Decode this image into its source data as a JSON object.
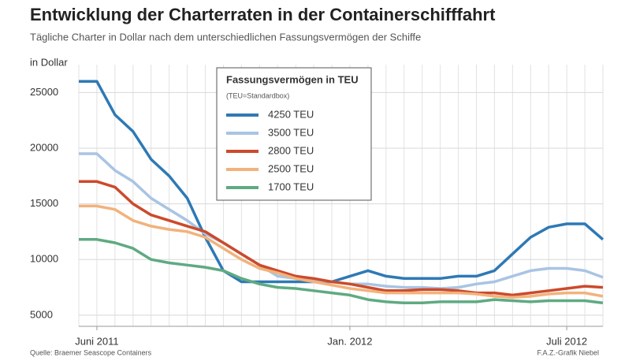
{
  "chart_data": {
    "type": "line",
    "title": "Entwicklung der Charterraten in der Containerschifffahrt",
    "subtitle": "Tägliche Charter in Dollar nach dem unterschiedlichen Fassungsvermögen der Schiffe",
    "y_label": "in Dollar",
    "legend_title": "Fassungsvermögen in TEU",
    "legend_subtitle": "(TEU=Standardbox)",
    "source": "Quelle: Braemer Seascope Containers",
    "credit": "F.A.Z.-Grafik Niebel",
    "categories": [
      null,
      "Juni 2011",
      null,
      null,
      null,
      null,
      null,
      null,
      null,
      null,
      null,
      null,
      null,
      null,
      null,
      "Jan. 2012",
      null,
      null,
      null,
      null,
      null,
      null,
      null,
      null,
      null,
      null,
      null,
      "Juli 2012",
      null,
      null
    ],
    "series": [
      {
        "name": "4250 TEU",
        "color": "#2e79b5",
        "values": [
          26000,
          26000,
          23000,
          21500,
          19000,
          17500,
          15500,
          12000,
          9000,
          8000,
          8000,
          8000,
          8000,
          8000,
          8000,
          8500,
          9000,
          8500,
          8300,
          8300,
          8300,
          8500,
          8500,
          9000,
          10500,
          12000,
          12900,
          13200,
          13200,
          11800
        ]
      },
      {
        "name": "3500 TEU",
        "color": "#a9c4e4",
        "values": [
          19500,
          19500,
          18000,
          17000,
          15500,
          14500,
          13500,
          12300,
          11500,
          10500,
          9500,
          8500,
          8300,
          8200,
          8000,
          7800,
          7800,
          7600,
          7500,
          7500,
          7400,
          7500,
          7800,
          8000,
          8500,
          9000,
          9200,
          9200,
          9000,
          8400
        ]
      },
      {
        "name": "2800 TEU",
        "color": "#cc4a2b",
        "values": [
          17000,
          17000,
          16500,
          15000,
          14000,
          13500,
          13000,
          12500,
          11500,
          10500,
          9500,
          9000,
          8500,
          8300,
          8000,
          7800,
          7500,
          7200,
          7200,
          7300,
          7300,
          7200,
          7000,
          7000,
          6800,
          7000,
          7200,
          7400,
          7600,
          7500
        ]
      },
      {
        "name": "2500 TEU",
        "color": "#f2b27c",
        "values": [
          14800,
          14800,
          14500,
          13500,
          13000,
          12700,
          12500,
          12000,
          11000,
          10000,
          9200,
          8800,
          8300,
          8000,
          7700,
          7400,
          7200,
          7000,
          7000,
          7000,
          7000,
          7000,
          6900,
          6700,
          6600,
          6700,
          6900,
          7000,
          7000,
          6700
        ]
      },
      {
        "name": "1700 TEU",
        "color": "#5faa82",
        "values": [
          11800,
          11800,
          11500,
          11000,
          10000,
          9700,
          9500,
          9300,
          9000,
          8300,
          7800,
          7500,
          7400,
          7200,
          7000,
          6800,
          6400,
          6200,
          6100,
          6100,
          6200,
          6200,
          6200,
          6400,
          6300,
          6200,
          6300,
          6300,
          6300,
          6100
        ]
      }
    ],
    "ylim": [
      4000,
      27500
    ],
    "yticks": [
      5000,
      10000,
      15000,
      20000,
      25000
    ],
    "grid": true
  }
}
